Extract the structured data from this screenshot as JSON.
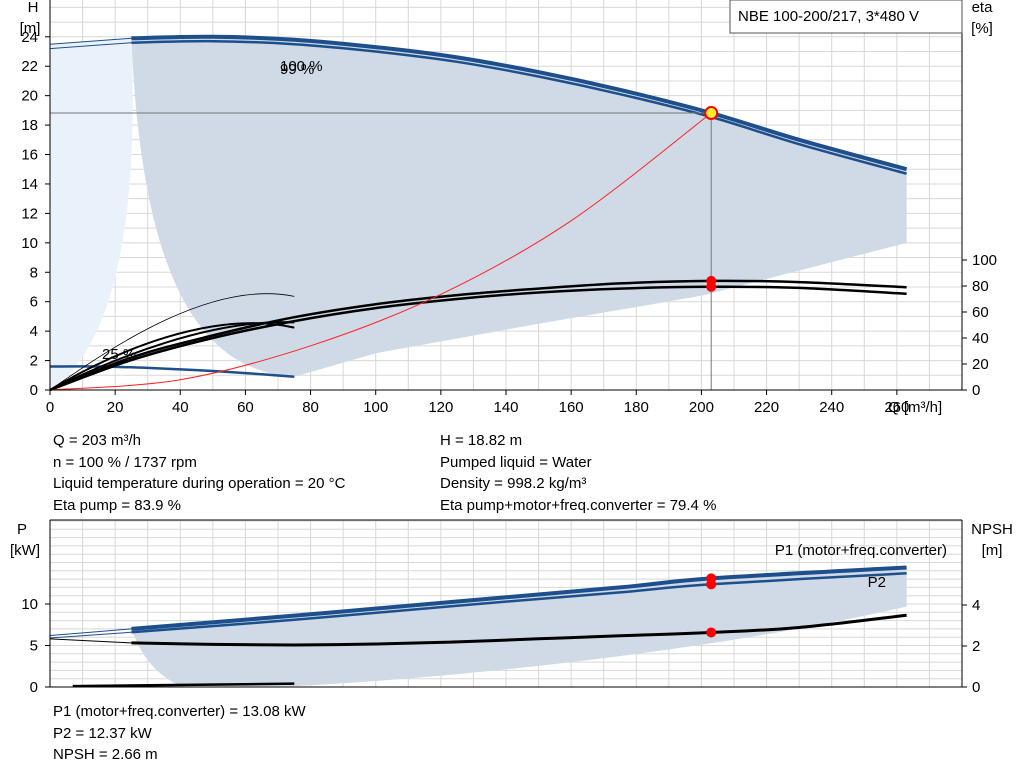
{
  "pump_label": "NBE 100-200/217, 3*480 V",
  "colors": {
    "envelope": "#cfdae6",
    "envelope_light": "#e9f2fb",
    "blue": "#1d4f8c",
    "op_point": "#ff0000",
    "system_curve": "#ff2020"
  },
  "chart_data": [
    {
      "type": "line",
      "title": "",
      "xlabel": "Q [m³/h]",
      "y_left_label": [
        "H",
        "[m]"
      ],
      "y_right_label": [
        "eta",
        "[%]"
      ],
      "x_ticks": [
        0,
        20,
        40,
        60,
        80,
        100,
        120,
        140,
        160,
        180,
        200,
        220,
        240,
        260
      ],
      "y_left_ticks": [
        0,
        2,
        4,
        6,
        8,
        10,
        12,
        14,
        16,
        18,
        20,
        22,
        24
      ],
      "y_right_ticks": [
        0,
        20,
        40,
        60,
        80,
        100
      ],
      "xlim": [
        0,
        280
      ],
      "ylim_left": [
        0,
        26.5
      ],
      "ylim_right_eta": [
        0,
        100
      ],
      "speed_labels": [
        "100 %",
        "99 %",
        "25 %"
      ],
      "series": [
        {
          "name": "100 %",
          "x": [
            0,
            25,
            50,
            75,
            100,
            125,
            150,
            175,
            203,
            230,
            263
          ],
          "y": [
            23.5,
            23.9,
            24.0,
            23.8,
            23.3,
            22.6,
            21.6,
            20.4,
            18.82,
            17.0,
            15.0
          ]
        },
        {
          "name": "99 %",
          "x": [
            0,
            25,
            50,
            75,
            100,
            125,
            150,
            175,
            203,
            230,
            263
          ],
          "y": [
            23.2,
            23.6,
            23.7,
            23.5,
            23.0,
            22.3,
            21.3,
            20.1,
            18.55,
            16.7,
            14.7
          ]
        },
        {
          "name": "25 %",
          "x": [
            0,
            15,
            30,
            45,
            60,
            75
          ],
          "y": [
            1.6,
            1.6,
            1.5,
            1.35,
            1.15,
            0.9
          ]
        },
        {
          "name": "eta pump",
          "x": [
            0,
            25,
            50,
            75,
            100,
            125,
            150,
            175,
            203,
            230,
            263
          ],
          "y": [
            0,
            25,
            42,
            56,
            66,
            73,
            78,
            82,
            83.9,
            83,
            79
          ]
        },
        {
          "name": "eta pump+motor+freq.converter",
          "x": [
            0,
            25,
            50,
            75,
            100,
            125,
            150,
            175,
            203,
            230,
            263
          ],
          "y": [
            0,
            23,
            40,
            53,
            63,
            70,
            75,
            78,
            79.4,
            78.5,
            74
          ]
        },
        {
          "name": "system curve",
          "x": [
            0,
            40,
            80,
            120,
            160,
            203
          ],
          "y": [
            0,
            0.7,
            3.0,
            6.5,
            11.5,
            18.82
          ]
        }
      ],
      "operating_point": {
        "Q": 203,
        "H": 18.82,
        "eta_pump": 83.9,
        "eta_total": 79.4
      }
    },
    {
      "type": "line",
      "title": "",
      "xlabel": "",
      "y_left_label": [
        "P",
        "[kW]"
      ],
      "y_right_label": [
        "NPSH",
        "[m]"
      ],
      "x_ticks": [
        0,
        20,
        40,
        60,
        80,
        100,
        120,
        140,
        160,
        180,
        200,
        220,
        240,
        260
      ],
      "y_left_ticks": [
        0,
        5,
        10
      ],
      "y_right_ticks": [
        0,
        2,
        4
      ],
      "xlim": [
        0,
        280
      ],
      "ylim_left": [
        0,
        15
      ],
      "ylim_right_npsh": [
        0,
        6
      ],
      "series": [
        {
          "name": "P1 (motor+freq.converter)",
          "x": [
            0,
            25,
            75,
            125,
            175,
            203,
            263
          ],
          "y": [
            6.2,
            7.0,
            8.6,
            10.3,
            12.0,
            13.08,
            14.4
          ]
        },
        {
          "name": "P2",
          "x": [
            0,
            25,
            75,
            125,
            175,
            203,
            263
          ],
          "y": [
            5.9,
            6.6,
            8.1,
            9.8,
            11.4,
            12.37,
            13.7
          ]
        },
        {
          "name": "NPSH",
          "x": [
            25,
            50,
            75,
            100,
            125,
            150,
            175,
            203,
            230,
            263
          ],
          "y": [
            2.15,
            2.08,
            2.05,
            2.1,
            2.2,
            2.35,
            2.5,
            2.66,
            2.9,
            3.5
          ]
        }
      ],
      "operating_point": {
        "Q": 203,
        "P1": 13.08,
        "P2": 12.37,
        "NPSH": 2.66
      }
    }
  ],
  "info_top_left": [
    "Q = 203 m³/h",
    "n = 100 % / 1737 rpm",
    "Liquid temperature during operation = 20 °C",
    "Eta pump = 83.9 %"
  ],
  "info_top_right": [
    "H = 18.82 m",
    "Pumped liquid = Water",
    "Density = 998.2 kg/m³",
    "Eta pump+motor+freq.converter = 79.4 %"
  ],
  "info_bottom": [
    "P1 (motor+freq.converter) = 13.08 kW",
    "P2 = 12.37 kW",
    "NPSH = 2.66 m"
  ]
}
